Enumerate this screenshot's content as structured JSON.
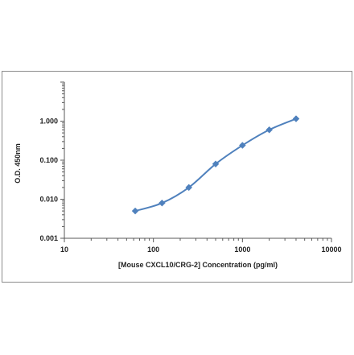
{
  "chart_data": {
    "type": "line",
    "title": "",
    "xlabel": "[Mouse CXCL10/CRG-2] Concentration (pg/ml)",
    "ylabel": "O.D. 450nm",
    "x_scale": "log",
    "y_scale": "log",
    "xlim": [
      10,
      10000
    ],
    "ylim": [
      0.001,
      10
    ],
    "x_ticks": [
      "10",
      "100",
      "1000",
      "10000"
    ],
    "y_ticks": [
      "0.001",
      "0.010",
      "0.100",
      "1.000"
    ],
    "grid": false,
    "legend": "none",
    "series": [
      {
        "x": [
          62.5,
          125,
          250,
          500,
          1000,
          2000,
          4000
        ],
        "y": [
          0.005,
          0.008,
          0.02,
          0.08,
          0.24,
          0.6,
          1.15
        ]
      }
    ],
    "colors": {
      "line": "#4f81bd",
      "marker": "#4f81bd",
      "axis": "#595959"
    }
  }
}
